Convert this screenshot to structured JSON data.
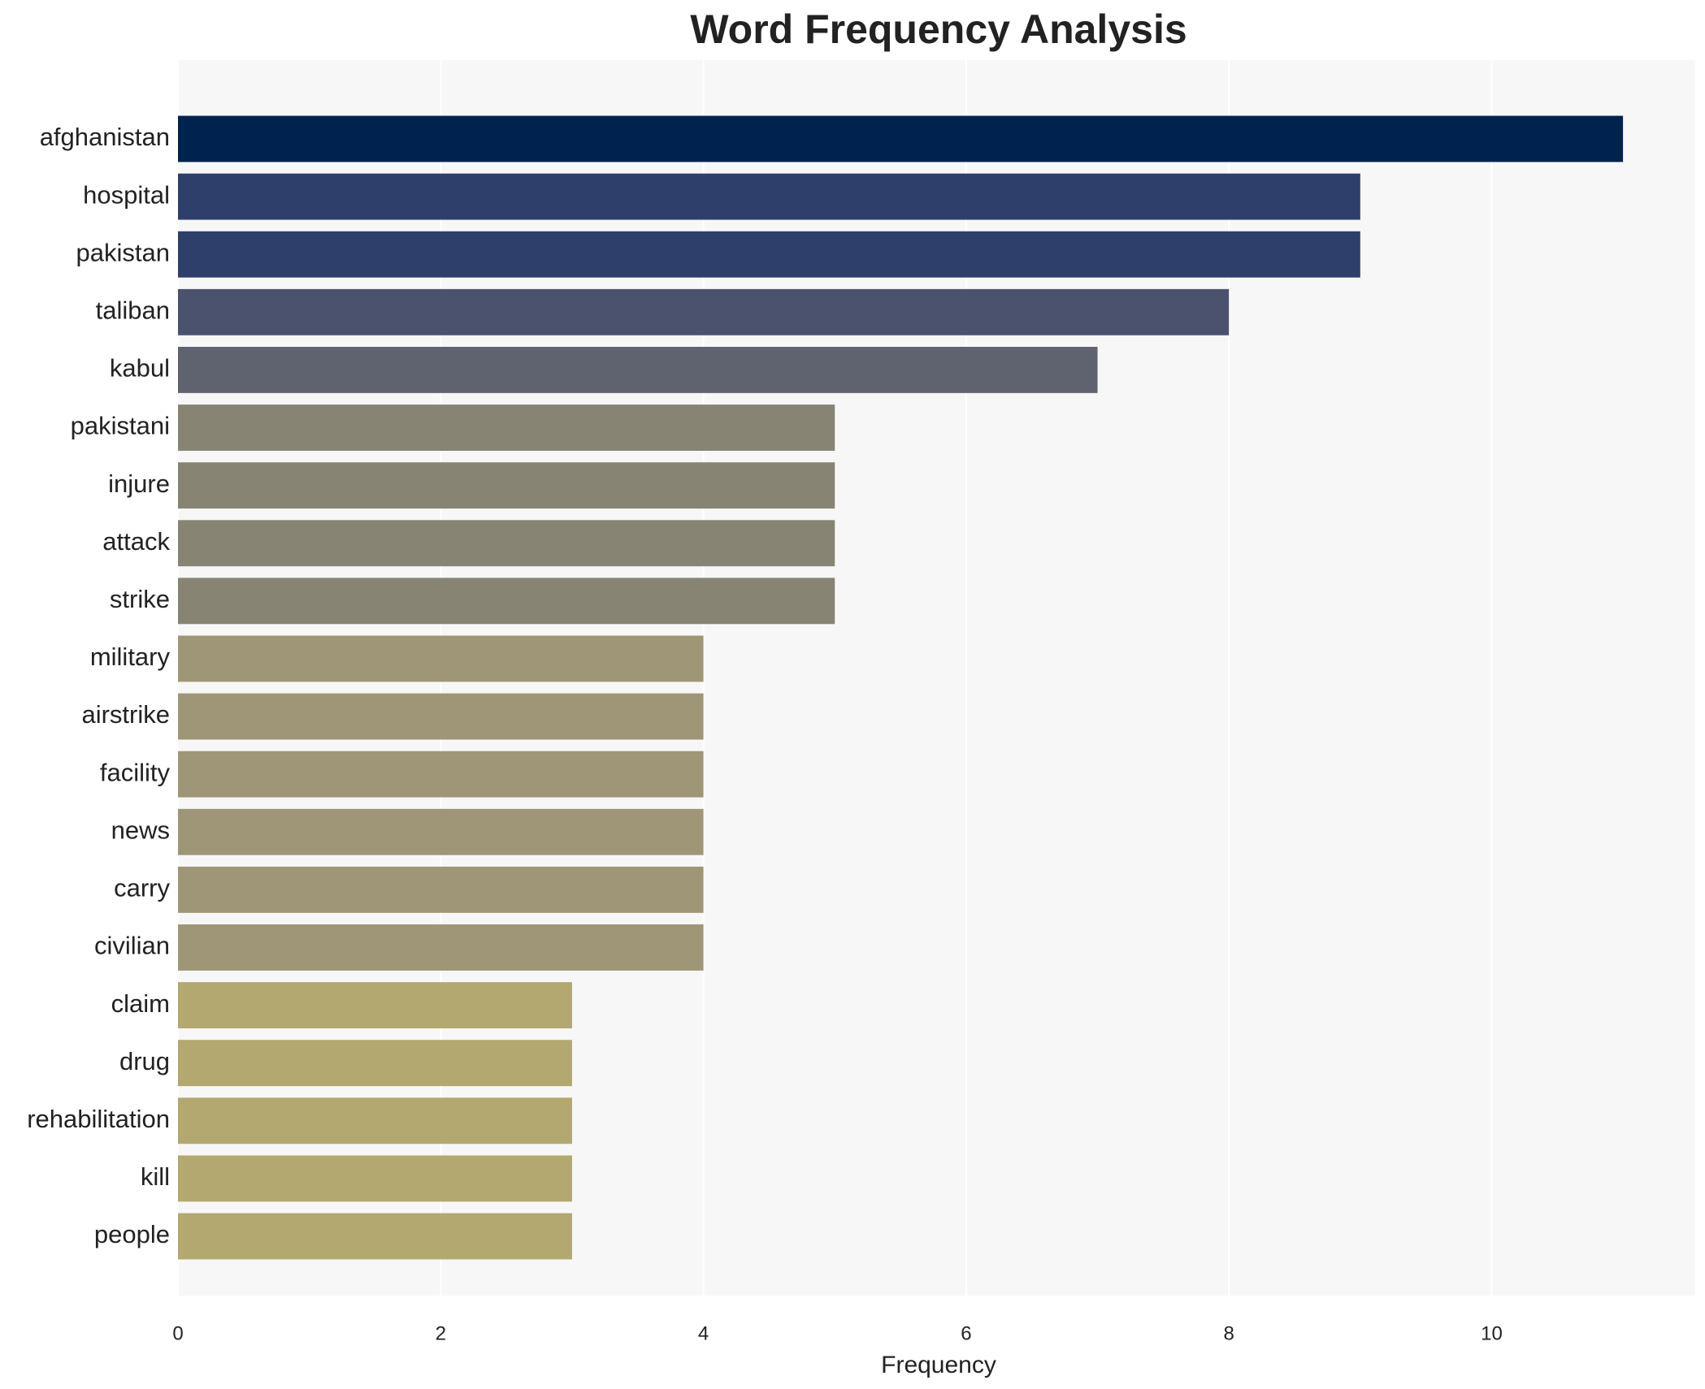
{
  "chart_data": {
    "type": "bar",
    "orientation": "horizontal",
    "title": "Word Frequency Analysis",
    "x_label": "Frequency",
    "categories": [
      "afghanistan",
      "hospital",
      "pakistan",
      "taliban",
      "kabul",
      "pakistani",
      "injure",
      "attack",
      "strike",
      "military",
      "airstrike",
      "facility",
      "news",
      "carry",
      "civilian",
      "claim",
      "drug",
      "rehabilitation",
      "kill",
      "people"
    ],
    "values": [
      11,
      9,
      9,
      8,
      7,
      5,
      5,
      5,
      5,
      4,
      4,
      4,
      4,
      4,
      4,
      3,
      3,
      3,
      3,
      3
    ],
    "colors": [
      "#00224e",
      "#2f3f6b",
      "#2f3f6b",
      "#4a526e",
      "#5f6370",
      "#878474",
      "#878474",
      "#878474",
      "#878474",
      "#9e9677",
      "#9e9677",
      "#9e9677",
      "#9e9677",
      "#9e9677",
      "#9e9677",
      "#b3a86f",
      "#b3a86f",
      "#b3a86f",
      "#b3a86f",
      "#b3a86f"
    ],
    "xlim": [
      0,
      11.55
    ],
    "xticks": [
      0,
      2,
      4,
      6,
      8,
      10
    ],
    "grid": true
  }
}
